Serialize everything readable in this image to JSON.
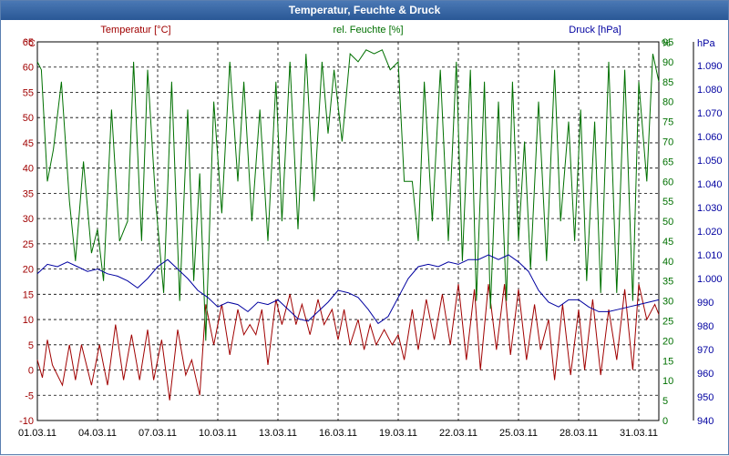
{
  "title": "Temperatur, Feuchte & Druck",
  "colors": {
    "temp": "#a00000",
    "hum": "#007000",
    "press": "#0000a0",
    "grid": "#000000",
    "axis": "#000000"
  },
  "chart_data": {
    "type": "line",
    "title": "Temperatur, Feuchte & Druck",
    "x": {
      "range": [
        "01.03.11",
        "01.04.11"
      ],
      "tick_labels": [
        "01.03.11",
        "04.03.11",
        "07.03.11",
        "10.03.11",
        "13.03.11",
        "16.03.11",
        "19.03.11",
        "22.03.11",
        "25.03.11",
        "28.03.11",
        "31.03.11"
      ],
      "tick_days": [
        0,
        3,
        6,
        9,
        12,
        15,
        18,
        21,
        24,
        27,
        30
      ]
    },
    "axes": {
      "temp": {
        "label": "Temperatur [°C]",
        "unit": "°C",
        "range": [
          -10,
          65
        ],
        "ticks": [
          -10,
          -5,
          0,
          5,
          10,
          15,
          20,
          25,
          30,
          35,
          40,
          45,
          50,
          55,
          60,
          65
        ]
      },
      "hum": {
        "label": "rel. Feuchte [%]",
        "unit": "%",
        "range": [
          0,
          95
        ],
        "ticks": [
          0,
          5,
          10,
          15,
          20,
          25,
          30,
          35,
          40,
          45,
          50,
          55,
          60,
          65,
          70,
          75,
          80,
          85,
          90,
          95
        ]
      },
      "press": {
        "label": "Druck [hPa]",
        "unit": "hPa",
        "range": [
          940,
          1100
        ],
        "ticks": [
          "940",
          "950",
          "960",
          "970",
          "980",
          "990",
          "1.000",
          "1.010",
          "1.020",
          "1.030",
          "1.040",
          "1.050",
          "1.060",
          "1.070",
          "1.080",
          "1.090"
        ]
      }
    },
    "series": [
      {
        "name": "Temperatur [°C]",
        "axis": "temp",
        "color": "#a00000",
        "points": [
          [
            0,
            2
          ],
          [
            0.25,
            -1.5
          ],
          [
            0.5,
            6
          ],
          [
            0.75,
            1
          ],
          [
            1.25,
            -3
          ],
          [
            1.6,
            5
          ],
          [
            1.9,
            -2
          ],
          [
            2.2,
            5
          ],
          [
            2.7,
            -3
          ],
          [
            3.1,
            5
          ],
          [
            3.5,
            -3
          ],
          [
            3.9,
            9
          ],
          [
            4.3,
            -2
          ],
          [
            4.7,
            7
          ],
          [
            5.1,
            -2
          ],
          [
            5.5,
            8
          ],
          [
            5.8,
            -2
          ],
          [
            6.2,
            6
          ],
          [
            6.6,
            -6
          ],
          [
            7.0,
            8
          ],
          [
            7.4,
            -1
          ],
          [
            7.7,
            2
          ],
          [
            8.1,
            -5
          ],
          [
            8.4,
            13
          ],
          [
            8.8,
            5
          ],
          [
            9.2,
            13
          ],
          [
            9.6,
            3
          ],
          [
            10.0,
            12
          ],
          [
            10.3,
            7
          ],
          [
            10.6,
            9
          ],
          [
            10.9,
            7
          ],
          [
            11.2,
            12
          ],
          [
            11.5,
            1
          ],
          [
            11.9,
            14
          ],
          [
            12.2,
            9
          ],
          [
            12.6,
            15
          ],
          [
            12.9,
            9
          ],
          [
            13.2,
            13
          ],
          [
            13.6,
            7
          ],
          [
            14.0,
            14
          ],
          [
            14.3,
            9
          ],
          [
            14.7,
            12
          ],
          [
            15.0,
            6
          ],
          [
            15.3,
            12
          ],
          [
            15.6,
            5
          ],
          [
            16.0,
            10
          ],
          [
            16.3,
            4
          ],
          [
            16.6,
            9
          ],
          [
            16.9,
            5
          ],
          [
            17.3,
            8
          ],
          [
            17.7,
            5
          ],
          [
            18.0,
            7
          ],
          [
            18.3,
            2
          ],
          [
            18.7,
            12
          ],
          [
            19.0,
            4
          ],
          [
            19.4,
            14
          ],
          [
            19.8,
            6
          ],
          [
            20.2,
            15
          ],
          [
            20.6,
            5
          ],
          [
            21.0,
            17
          ],
          [
            21.4,
            2
          ],
          [
            21.8,
            16
          ],
          [
            22.1,
            0
          ],
          [
            22.5,
            17
          ],
          [
            22.9,
            4
          ],
          [
            23.3,
            17
          ],
          [
            23.6,
            3
          ],
          [
            24.0,
            16
          ],
          [
            24.4,
            2
          ],
          [
            24.8,
            13
          ],
          [
            25.1,
            4
          ],
          [
            25.5,
            10
          ],
          [
            25.8,
            -2
          ],
          [
            26.2,
            13
          ],
          [
            26.6,
            -1
          ],
          [
            27.0,
            12
          ],
          [
            27.3,
            0
          ],
          [
            27.7,
            14
          ],
          [
            28.1,
            -1
          ],
          [
            28.5,
            12
          ],
          [
            28.9,
            2
          ],
          [
            29.3,
            16
          ],
          [
            29.7,
            0
          ],
          [
            30.0,
            17
          ],
          [
            30.4,
            10
          ],
          [
            30.8,
            13
          ],
          [
            31.0,
            11
          ]
        ]
      },
      {
        "name": "rel. Feuchte [%]",
        "axis": "hum",
        "color": "#007000",
        "points": [
          [
            0,
            90
          ],
          [
            0.2,
            88
          ],
          [
            0.5,
            60
          ],
          [
            0.8,
            68
          ],
          [
            1.2,
            85
          ],
          [
            1.6,
            55
          ],
          [
            1.9,
            40
          ],
          [
            2.3,
            65
          ],
          [
            2.7,
            42
          ],
          [
            3.0,
            48
          ],
          [
            3.3,
            35
          ],
          [
            3.7,
            78
          ],
          [
            4.1,
            45
          ],
          [
            4.5,
            50
          ],
          [
            4.8,
            90
          ],
          [
            5.2,
            45
          ],
          [
            5.5,
            88
          ],
          [
            5.9,
            55
          ],
          [
            6.3,
            32
          ],
          [
            6.7,
            85
          ],
          [
            7.1,
            30
          ],
          [
            7.5,
            78
          ],
          [
            7.8,
            35
          ],
          [
            8.1,
            62
          ],
          [
            8.4,
            20
          ],
          [
            8.8,
            80
          ],
          [
            9.2,
            52
          ],
          [
            9.6,
            90
          ],
          [
            10.0,
            60
          ],
          [
            10.3,
            85
          ],
          [
            10.7,
            50
          ],
          [
            11.1,
            78
          ],
          [
            11.5,
            45
          ],
          [
            11.9,
            85
          ],
          [
            12.2,
            50
          ],
          [
            12.6,
            90
          ],
          [
            13.0,
            48
          ],
          [
            13.4,
            92
          ],
          [
            13.8,
            55
          ],
          [
            14.2,
            90
          ],
          [
            14.5,
            72
          ],
          [
            14.8,
            88
          ],
          [
            15.2,
            70
          ],
          [
            15.6,
            92
          ],
          [
            16.0,
            90
          ],
          [
            16.4,
            93
          ],
          [
            16.8,
            92
          ],
          [
            17.2,
            93
          ],
          [
            17.6,
            88
          ],
          [
            18.0,
            90
          ],
          [
            18.3,
            60
          ],
          [
            18.7,
            60
          ],
          [
            19.0,
            45
          ],
          [
            19.3,
            85
          ],
          [
            19.7,
            50
          ],
          [
            20.1,
            88
          ],
          [
            20.5,
            45
          ],
          [
            20.9,
            90
          ],
          [
            21.2,
            40
          ],
          [
            21.6,
            88
          ],
          [
            21.9,
            30
          ],
          [
            22.3,
            85
          ],
          [
            22.6,
            28
          ],
          [
            23.0,
            80
          ],
          [
            23.4,
            30
          ],
          [
            23.7,
            85
          ],
          [
            24.0,
            45
          ],
          [
            24.3,
            70
          ],
          [
            24.6,
            38
          ],
          [
            25.0,
            80
          ],
          [
            25.4,
            40
          ],
          [
            25.8,
            88
          ],
          [
            26.1,
            50
          ],
          [
            26.5,
            75
          ],
          [
            26.8,
            45
          ],
          [
            27.1,
            78
          ],
          [
            27.4,
            35
          ],
          [
            27.8,
            75
          ],
          [
            28.1,
            32
          ],
          [
            28.5,
            90
          ],
          [
            28.9,
            32
          ],
          [
            29.3,
            88
          ],
          [
            29.7,
            30
          ],
          [
            30.0,
            85
          ],
          [
            30.4,
            60
          ],
          [
            30.7,
            92
          ],
          [
            31.0,
            85
          ]
        ]
      },
      {
        "name": "Druck [hPa]",
        "axis": "press",
        "color": "#0000a0",
        "points": [
          [
            0,
            1002
          ],
          [
            0.5,
            1006
          ],
          [
            1.0,
            1005
          ],
          [
            1.5,
            1007
          ],
          [
            2.0,
            1005
          ],
          [
            2.5,
            1003
          ],
          [
            3.0,
            1004
          ],
          [
            3.5,
            1002
          ],
          [
            4.0,
            1001
          ],
          [
            4.5,
            999
          ],
          [
            5.0,
            996
          ],
          [
            5.5,
            1000
          ],
          [
            6.0,
            1005
          ],
          [
            6.5,
            1008
          ],
          [
            7.0,
            1004
          ],
          [
            7.5,
            1000
          ],
          [
            8.0,
            995
          ],
          [
            8.5,
            992
          ],
          [
            9.0,
            988
          ],
          [
            9.5,
            990
          ],
          [
            10.0,
            989
          ],
          [
            10.5,
            986
          ],
          [
            11.0,
            990
          ],
          [
            11.5,
            989
          ],
          [
            12.0,
            991
          ],
          [
            12.5,
            987
          ],
          [
            13.0,
            983
          ],
          [
            13.5,
            982
          ],
          [
            14.0,
            986
          ],
          [
            14.5,
            990
          ],
          [
            15.0,
            995
          ],
          [
            15.5,
            994
          ],
          [
            16.0,
            992
          ],
          [
            16.5,
            987
          ],
          [
            17.0,
            981
          ],
          [
            17.5,
            984
          ],
          [
            18.0,
            992
          ],
          [
            18.5,
            1000
          ],
          [
            19.0,
            1005
          ],
          [
            19.5,
            1006
          ],
          [
            20.0,
            1005
          ],
          [
            20.5,
            1007
          ],
          [
            21.0,
            1006
          ],
          [
            21.5,
            1008
          ],
          [
            22.0,
            1008
          ],
          [
            22.5,
            1010
          ],
          [
            23.0,
            1008
          ],
          [
            23.5,
            1010
          ],
          [
            24.0,
            1007
          ],
          [
            24.5,
            1003
          ],
          [
            25.0,
            995
          ],
          [
            25.5,
            990
          ],
          [
            26.0,
            988
          ],
          [
            26.5,
            991
          ],
          [
            27.0,
            991
          ],
          [
            27.5,
            988
          ],
          [
            28.0,
            986
          ],
          [
            28.5,
            986
          ],
          [
            29.0,
            987
          ],
          [
            29.5,
            988
          ],
          [
            30.0,
            989
          ],
          [
            30.5,
            990
          ],
          [
            31.0,
            991
          ]
        ]
      }
    ],
    "grid": true,
    "legend": "top"
  }
}
